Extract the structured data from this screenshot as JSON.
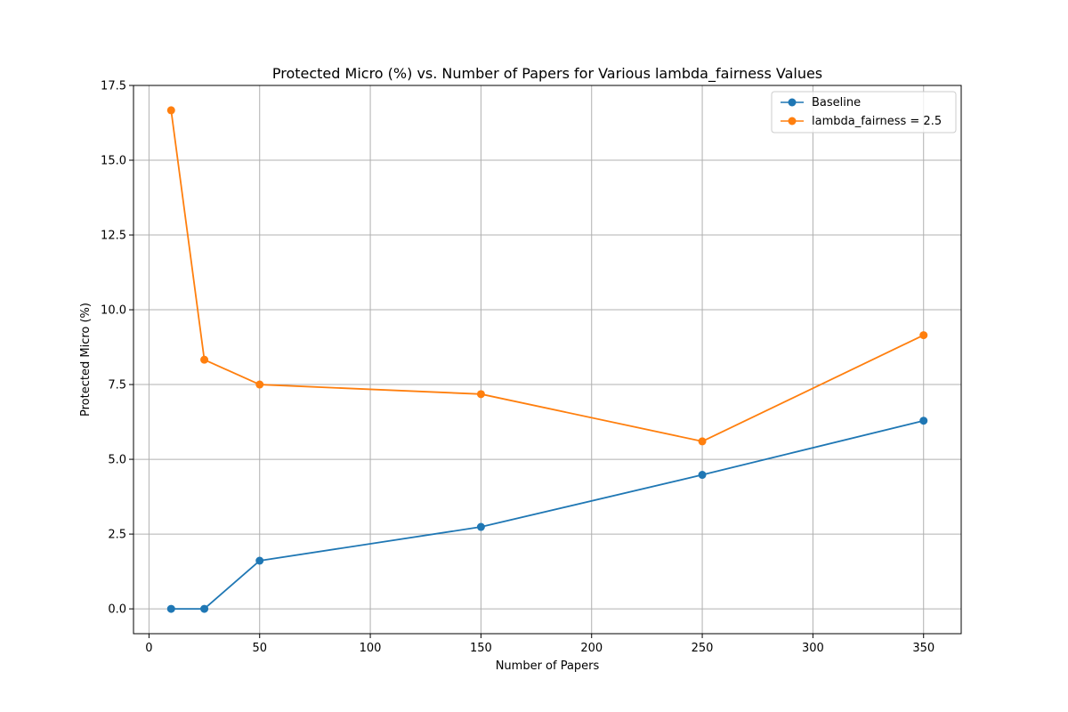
{
  "chart_data": {
    "type": "line",
    "title": "Protected Micro (%) vs. Number of Papers for Various lambda_fairness Values",
    "xlabel": "Number of Papers",
    "ylabel": "Protected Micro (%)",
    "xlim": [
      -7,
      367
    ],
    "ylim": [
      -0.83,
      17.5
    ],
    "x_ticks": [
      0,
      50,
      100,
      150,
      200,
      250,
      300,
      350
    ],
    "x_tick_labels": [
      "0",
      "50",
      "100",
      "150",
      "200",
      "250",
      "300",
      "350"
    ],
    "y_ticks": [
      0,
      2.5,
      5,
      7.5,
      10,
      12.5,
      15,
      17.5
    ],
    "y_tick_labels": [
      "0.0",
      "2.5",
      "5.0",
      "7.5",
      "10.0",
      "12.5",
      "15.0",
      "17.5"
    ],
    "grid": true,
    "legend_position": "top-right",
    "x": [
      10,
      25,
      50,
      150,
      250,
      350
    ],
    "series": [
      {
        "name": "Baseline",
        "color": "#1f77b4",
        "values": [
          0.0,
          0.0,
          1.61,
          2.74,
          4.48,
          6.29
        ]
      },
      {
        "name": "lambda_fairness = 2.5",
        "color": "#ff7f0e",
        "values": [
          16.67,
          8.33,
          7.5,
          7.18,
          5.6,
          9.15
        ]
      }
    ]
  }
}
